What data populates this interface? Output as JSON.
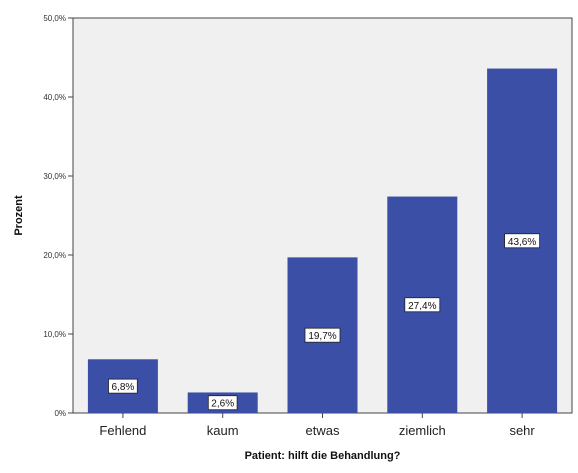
{
  "chart_data": {
    "type": "bar",
    "categories": [
      "Fehlend",
      "kaum",
      "etwas",
      "ziemlich",
      "sehr"
    ],
    "values": [
      6.8,
      2.6,
      19.7,
      27.4,
      43.6
    ],
    "data_labels": [
      "6,8%",
      "2,6%",
      "19,7%",
      "27,4%",
      "43,6%"
    ],
    "title": "",
    "xlabel": "Patient: hilft die Behandlung?",
    "ylabel": "Prozent",
    "ylim": [
      0,
      50
    ],
    "yticks": [
      0,
      10,
      20,
      30,
      40,
      50
    ],
    "ytick_labels": [
      "0%",
      "10,0%",
      "20,0%",
      "30,0%",
      "40,0%",
      "50,0%"
    ],
    "grid": false,
    "legend": "none",
    "colors": {
      "bar": "#3B4FA6",
      "plot_background": "#F0F0F0",
      "frame": "#444444",
      "label_box": "#FFFFFF"
    }
  }
}
